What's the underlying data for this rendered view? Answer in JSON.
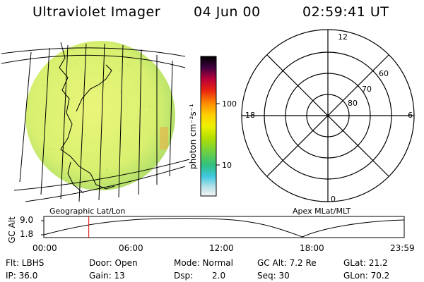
{
  "header": {
    "instrument": "Ultraviolet Imager",
    "date": "04 Jun 00",
    "time": "02:59:41 UT"
  },
  "colorbar": {
    "title": "photon cm⁻²s⁻¹",
    "ticks": [
      "100",
      "10"
    ]
  },
  "polar_plot": {
    "mlt_labels": [
      "12",
      "18",
      "6",
      "0"
    ],
    "lat_labels": [
      "60",
      "70",
      "80"
    ]
  },
  "grid_labels": {
    "left": "Geographic Lat/Lon",
    "right": "Apex MLat/MLT"
  },
  "altitude_plot": {
    "ylabel": "GC Alt",
    "yticks": [
      "9.0",
      "1.8"
    ],
    "xticks": [
      "00:00",
      "06:00",
      "12:00",
      "18:00",
      "23:59"
    ],
    "marker_time_hours": 2.995
  },
  "status": {
    "flt": "Flt: LBHS",
    "door": "Door: Open",
    "mode": "Mode: Normal",
    "gc_alt": "GC Alt: 7.2 Re",
    "glat": "GLat:  21.2",
    "ip": "IP: 36.0",
    "gain": "Gain: 13",
    "dsp_label": "Dsp:",
    "dsp_value": "2.0",
    "seq": "Seq: 30",
    "glon": "GLon:  70.2"
  },
  "colors": {
    "marker": "#dd0000",
    "disk_main": "#d8f070",
    "disk_edge": "#9ed86a"
  }
}
